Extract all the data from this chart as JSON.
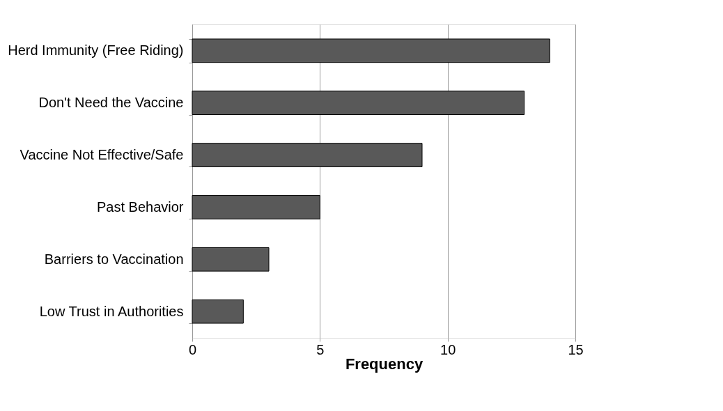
{
  "chart_data": {
    "type": "bar",
    "orientation": "horizontal",
    "xlabel": "Frequency",
    "categories": [
      "Herd Immunity (Free Riding)",
      "Don't Need the Vaccine",
      "Vaccine Not Effective/Safe",
      "Past Behavior",
      "Barriers to Vaccination",
      "Low Trust in Authorities"
    ],
    "values": [
      14,
      13,
      9,
      5,
      3,
      2
    ],
    "color": "#595959",
    "xlim": [
      0,
      15
    ],
    "xticks": [
      0,
      5,
      10,
      15
    ],
    "grid": "x"
  }
}
